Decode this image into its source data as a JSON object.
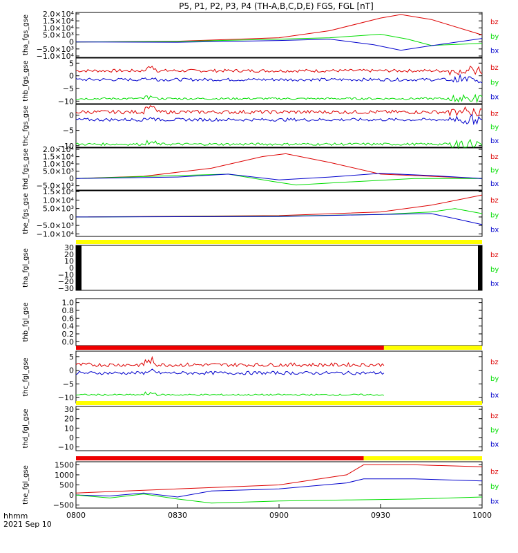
{
  "title": "P5, P1, P2, P3, P4 (TH-A,B,C,D,E) FGS, FGL [nT]",
  "colors": {
    "bx": "#0000cc",
    "by": "#00dd00",
    "bz": "#dd0000",
    "bar_yellow": "#ffff00",
    "bar_red": "#ee0000",
    "bar_black": "#000000"
  },
  "footer": {
    "axis_label": "hhmm",
    "date": "2021 Sep 10"
  },
  "chart_data": {
    "type": "line",
    "x_ticks": [
      "0800",
      "0830",
      "0900",
      "0930",
      "1000"
    ],
    "x_range": [
      "08:00",
      "10:00"
    ],
    "panels": [
      {
        "ylabel": "tha_fgs_gse",
        "ticks": [
          "2.0×10⁴",
          "1.5×10⁴",
          "1.0×10⁴",
          "5.0×10³",
          "0",
          "−5.0×10³",
          "−1.0×10⁴"
        ],
        "legend": [
          "bz",
          "by",
          "bx"
        ],
        "series": [
          {
            "name": "bz",
            "t": [
              0,
              30,
              60,
              75,
              90,
              96,
              105,
              120
            ],
            "v": [
              0,
              500,
              3000,
              8000,
              17000,
              19500,
              16000,
              5000
            ]
          },
          {
            "name": "by",
            "t": [
              0,
              30,
              60,
              75,
              90,
              98,
              105,
              120
            ],
            "v": [
              0,
              300,
              2000,
              3000,
              5500,
              2000,
              -2500,
              -1000
            ]
          },
          {
            "name": "bx",
            "t": [
              0,
              30,
              60,
              75,
              88,
              96,
              104,
              120
            ],
            "v": [
              0,
              -200,
              1000,
              2000,
              -2000,
              -6000,
              -3000,
              2500
            ]
          }
        ]
      },
      {
        "ylabel": "thb_fgs_gse",
        "ticks": [
          "5",
          "0",
          "−5",
          "−10"
        ],
        "legend": [
          "bz",
          "by",
          "bx"
        ],
        "series": [
          {
            "name": "bz",
            "base": 2,
            "noise": 0.6
          },
          {
            "name": "bx",
            "base": -1.5,
            "noise": 0.6
          },
          {
            "name": "by",
            "base": -9,
            "noise": 0.4
          }
        ]
      },
      {
        "ylabel": "thc_fgs_gse",
        "ticks": [
          "0",
          "−5",
          "−10"
        ],
        "legend": [
          "bz",
          "by",
          "bx"
        ],
        "series": [
          {
            "name": "bz",
            "base": 1,
            "noise": 0.6
          },
          {
            "name": "bx",
            "base": -1.5,
            "noise": 0.5
          },
          {
            "name": "by",
            "base": -9.5,
            "noise": 0.4
          }
        ]
      },
      {
        "ylabel": "thd_fgs_gse",
        "ticks": [
          "2.0×10⁴",
          "1.5×10⁴",
          "1.0×10⁴",
          "5.0×10³",
          "0",
          "−5.0×10³"
        ],
        "legend": [
          "bz",
          "by",
          "bx"
        ],
        "series": [
          {
            "name": "bz",
            "t": [
              0,
              20,
              40,
              55,
              62,
              75,
              90,
              120
            ],
            "v": [
              0,
              1500,
              7000,
              15000,
              17000,
              11000,
              3000,
              0
            ]
          },
          {
            "name": "by",
            "t": [
              0,
              30,
              45,
              58,
              65,
              80,
              100,
              120
            ],
            "v": [
              0,
              2000,
              3000,
              -2000,
              -4500,
              -2500,
              0,
              0
            ]
          },
          {
            "name": "bx",
            "t": [
              0,
              30,
              45,
              60,
              75,
              90,
              105,
              120
            ],
            "v": [
              0,
              1000,
              3000,
              -1000,
              1000,
              3500,
              2000,
              0
            ]
          }
        ]
      },
      {
        "ylabel": "the_fgs_gse",
        "ticks": [
          "1.5×10⁴",
          "1.0×10⁴",
          "5.0×10³",
          "0",
          "−5.0×10³",
          "−1.0×10⁴"
        ],
        "legend": [
          "bz",
          "by",
          "bx"
        ],
        "series": [
          {
            "name": "bz",
            "t": [
              0,
              60,
              90,
              105,
              120
            ],
            "v": [
              0,
              800,
              3000,
              7000,
              13000
            ]
          },
          {
            "name": "by",
            "t": [
              0,
              60,
              90,
              105,
              112,
              120
            ],
            "v": [
              0,
              500,
              1500,
              3000,
              5000,
              2000
            ]
          },
          {
            "name": "bx",
            "t": [
              0,
              60,
              90,
              105,
              112,
              120
            ],
            "v": [
              0,
              300,
              1500,
              2000,
              -1000,
              -4500
            ]
          }
        ]
      },
      {
        "ylabel": "tha_fgl_gse",
        "ticks": [
          "30",
          "20",
          "10",
          "0",
          "−10",
          "−20",
          "−30"
        ],
        "legend": [
          "bz",
          "by",
          "bx"
        ],
        "bar": [
          {
            "from": 0,
            "to": 120,
            "color": "yellow"
          }
        ],
        "series": []
      },
      {
        "ylabel": "thb_fgl_gse",
        "ticks": [
          "1.0",
          "0.8",
          "0.6",
          "0.4",
          "0.2",
          "0.0"
        ],
        "legend": [],
        "series": []
      },
      {
        "ylabel": "thc_fgl_gse",
        "ticks": [
          "5",
          "0",
          "−5",
          "−10"
        ],
        "legend": [
          "bz",
          "by",
          "bx"
        ],
        "bar": [
          {
            "from": 0,
            "to": 91,
            "color": "red"
          },
          {
            "from": 91,
            "to": 120,
            "color": "yellow"
          }
        ],
        "series": [
          {
            "name": "bz",
            "base": 2,
            "noise": 0.7,
            "tmax": 91
          },
          {
            "name": "bx",
            "base": -1,
            "noise": 0.6,
            "tmax": 91
          },
          {
            "name": "by",
            "base": -9,
            "noise": 0.3,
            "tmax": 91
          }
        ]
      },
      {
        "ylabel": "thd_fgl_gse",
        "ticks": [
          "30",
          "20",
          "10",
          "0",
          "−10"
        ],
        "legend": [
          "bz",
          "by",
          "bx"
        ],
        "bar": [
          {
            "from": 0,
            "to": 120,
            "color": "yellow"
          }
        ],
        "series": []
      },
      {
        "ylabel": "the_fgl_gse",
        "ticks": [
          "1500",
          "1000",
          "500",
          "0",
          "−500"
        ],
        "legend": [
          "bz",
          "by",
          "bx"
        ],
        "bar": [
          {
            "from": 0,
            "to": 85,
            "color": "red"
          },
          {
            "from": 85,
            "to": 120,
            "color": "yellow"
          }
        ],
        "series": [
          {
            "name": "bz",
            "t": [
              0,
              30,
              60,
              80,
              85,
              100,
              120
            ],
            "v": [
              100,
              300,
              500,
              1000,
              1500,
              1500,
              1400
            ]
          },
          {
            "name": "bx",
            "t": [
              0,
              10,
              20,
              30,
              40,
              60,
              80,
              85,
              100,
              120
            ],
            "v": [
              0,
              -50,
              100,
              -100,
              200,
              300,
              600,
              800,
              800,
              700
            ]
          },
          {
            "name": "by",
            "t": [
              0,
              10,
              20,
              30,
              40,
              60,
              80,
              100,
              120
            ],
            "v": [
              0,
              -150,
              50,
              -200,
              -400,
              -300,
              -250,
              -200,
              -100
            ]
          }
        ]
      }
    ]
  }
}
